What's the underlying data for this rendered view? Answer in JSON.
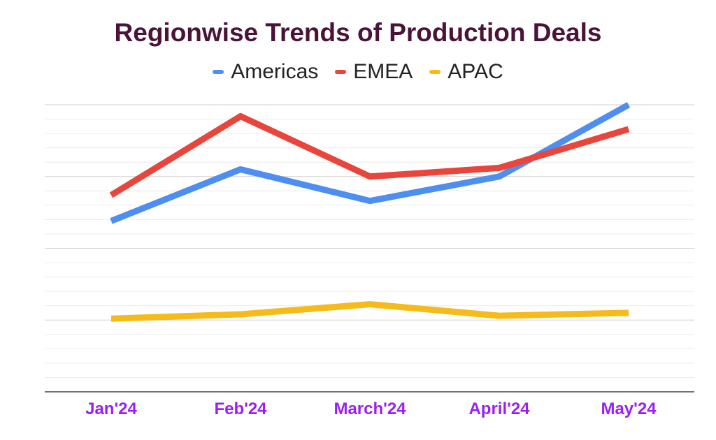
{
  "chart_data": {
    "type": "line",
    "title": "Regionwise Trends of Production Deals",
    "categories": [
      "Jan'24",
      "Feb'24",
      "March'24",
      "April'24",
      "May'24"
    ],
    "series": [
      {
        "name": "Americas",
        "color": "#4d8ef0",
        "values": [
          11.9,
          15.5,
          13.3,
          15.0,
          20.0
        ]
      },
      {
        "name": "EMEA",
        "color": "#e8453c",
        "values": [
          13.7,
          19.2,
          15.0,
          15.6,
          18.3
        ]
      },
      {
        "name": "APAC",
        "color": "#f5bb1a",
        "values": [
          5.1,
          5.4,
          6.1,
          5.3,
          5.5
        ]
      }
    ],
    "ylim": [
      0,
      20
    ],
    "legend_position": "top",
    "grid": true,
    "xlabel": "",
    "ylabel": ""
  }
}
